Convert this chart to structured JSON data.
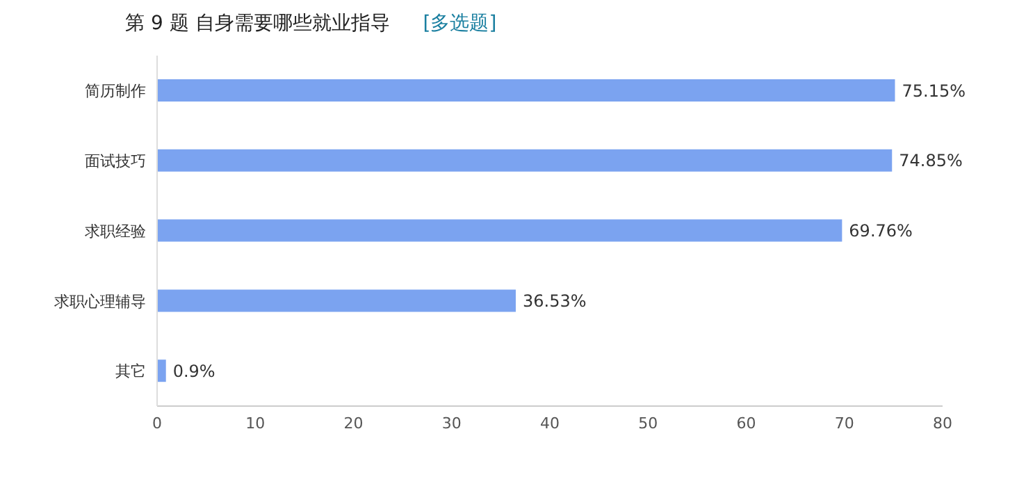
{
  "chart_data": {
    "type": "bar",
    "orientation": "horizontal",
    "title": "第 9 题   自身需要哪些就业指导",
    "subtitle": "[多选题]",
    "categories": [
      "简历制作",
      "面试技巧",
      "求职经验",
      "求职心理辅导",
      "其它"
    ],
    "values": [
      75.15,
      74.85,
      69.76,
      36.53,
      0.9
    ],
    "value_labels": [
      "75.15%",
      "74.85%",
      "69.76%",
      "36.53%",
      "0.9%"
    ],
    "color": "#7ba3f0",
    "xlim": [
      0,
      80
    ],
    "xticks": [
      0,
      10,
      20,
      30,
      40,
      50,
      60,
      70,
      80
    ],
    "grid": false,
    "legend": false
  }
}
